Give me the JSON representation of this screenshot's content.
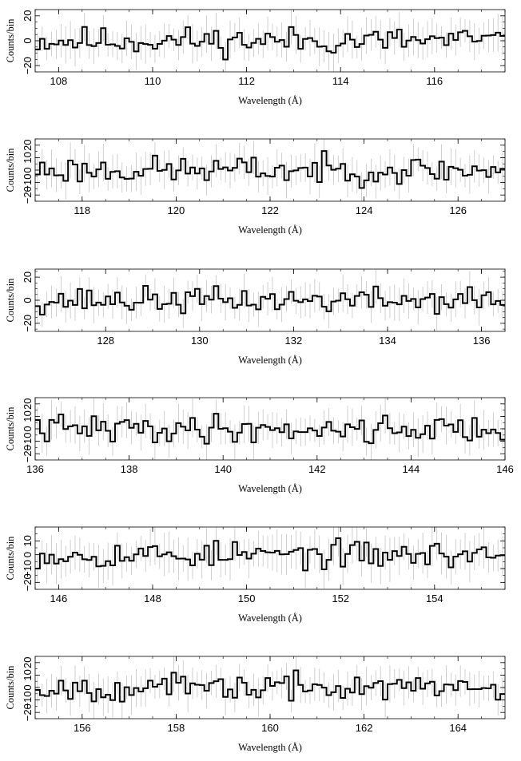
{
  "chart_data": [
    {
      "type": "line",
      "xlabel": "Wavelength (Å)",
      "ylabel": "Counts/bin",
      "xlim": [
        107.5,
        117.5
      ],
      "ylim": [
        -25,
        25
      ],
      "xticks": [
        "108",
        "110",
        "112",
        "114",
        "116"
      ],
      "xtick_values": [
        108,
        110,
        112,
        114,
        116
      ],
      "yticks": [
        "−20",
        "0",
        "20"
      ],
      "ytick_values": [
        -20,
        0,
        20
      ],
      "bin_width": 0.1,
      "amplitude": 15,
      "seed": 11
    },
    {
      "type": "line",
      "xlabel": "Wavelength (Å)",
      "ylabel": "Counts/bin",
      "xlim": [
        117,
        127
      ],
      "ylim": [
        -25,
        25
      ],
      "xticks": [
        "118",
        "120",
        "122",
        "124",
        "126"
      ],
      "xtick_values": [
        118,
        120,
        122,
        124,
        126
      ],
      "yticks": [
        "−20",
        "−10",
        "0",
        "10",
        "20"
      ],
      "ytick_values": [
        -20,
        -10,
        0,
        10,
        20
      ],
      "bin_width": 0.1,
      "amplitude": 15,
      "seed": 23
    },
    {
      "type": "line",
      "xlabel": "Wavelength (Å)",
      "ylabel": "Counts/bin",
      "xlim": [
        126.5,
        136.5
      ],
      "ylim": [
        -27,
        27
      ],
      "xticks": [
        "128",
        "130",
        "132",
        "134",
        "136"
      ],
      "xtick_values": [
        128,
        130,
        132,
        134,
        136
      ],
      "yticks": [
        "−20",
        "0",
        "20"
      ],
      "ytick_values": [
        -20,
        0,
        20
      ],
      "bin_width": 0.1,
      "amplitude": 15,
      "seed": 37
    },
    {
      "type": "line",
      "xlabel": "Wavelength (Å)",
      "ylabel": "Counts/bin",
      "xlim": [
        136,
        146
      ],
      "ylim": [
        -25,
        25
      ],
      "xticks": [
        "136",
        "138",
        "140",
        "142",
        "144",
        "146"
      ],
      "xtick_values": [
        136,
        138,
        140,
        142,
        144,
        146
      ],
      "yticks": [
        "−20",
        "−10",
        "0",
        "10",
        "20"
      ],
      "ytick_values": [
        -20,
        -10,
        0,
        10,
        20
      ],
      "bin_width": 0.1,
      "amplitude": 15,
      "seed": 41
    },
    {
      "type": "line",
      "xlabel": "Wavelength (Å)",
      "ylabel": "Counts/bin",
      "xlim": [
        145.5,
        155.5
      ],
      "ylim": [
        -25,
        20
      ],
      "xticks": [
        "146",
        "148",
        "150",
        "152",
        "154"
      ],
      "xtick_values": [
        146,
        148,
        150,
        152,
        154
      ],
      "yticks": [
        "−20",
        "−10",
        "0",
        "10"
      ],
      "ytick_values": [
        -20,
        -10,
        0,
        10
      ],
      "bin_width": 0.1,
      "amplitude": 13,
      "seed": 53
    },
    {
      "type": "line",
      "xlabel": "Wavelength (Å)",
      "ylabel": "Counts/bin",
      "xlim": [
        155,
        165
      ],
      "ylim": [
        -25,
        25
      ],
      "xticks": [
        "156",
        "158",
        "160",
        "162",
        "164"
      ],
      "xtick_values": [
        156,
        158,
        160,
        162,
        164
      ],
      "yticks": [
        "−20",
        "−10",
        "0",
        "10",
        "20"
      ],
      "ytick_values": [
        -20,
        -10,
        0,
        10,
        20
      ],
      "bin_width": 0.1,
      "amplitude": 14,
      "seed": 67
    }
  ],
  "colors": {
    "histogram": "#000000",
    "error_bars": "#bbbbbb",
    "frame": "#000000"
  }
}
